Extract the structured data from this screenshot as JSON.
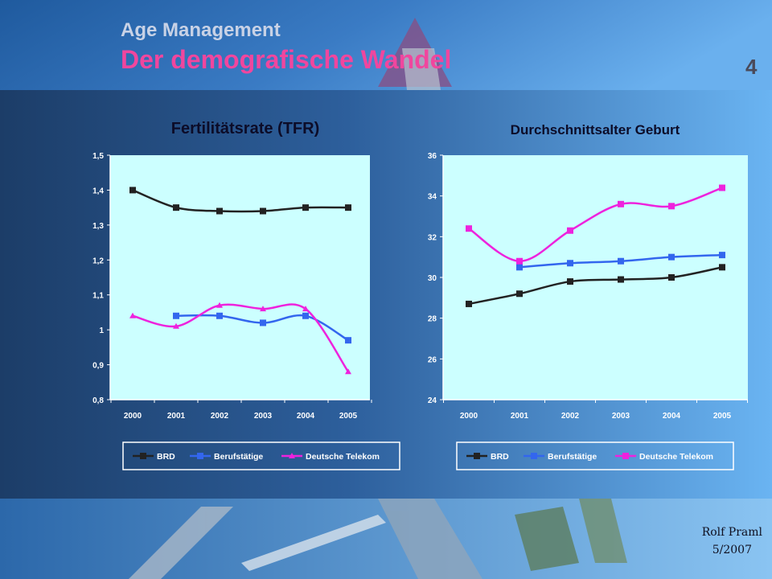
{
  "header": {
    "section": "Age Management",
    "title": "Der demografische Wandel",
    "page_number": "4"
  },
  "footer": {
    "author": "Rolf Praml",
    "date": "5/2007"
  },
  "colors": {
    "BRD": "#222222",
    "Berufstätige": "#3366ee",
    "Deutsche Telekom": "#ee22dd",
    "plot_bg": "#ccffff",
    "title_pink": "#f0469e"
  },
  "chart_data": [
    {
      "type": "line",
      "title": "Fertilitätsrate (TFR)",
      "x": [
        "2000",
        "2001",
        "2002",
        "2003",
        "2004",
        "2005"
      ],
      "ylim": [
        0.8,
        1.5
      ],
      "yticks": [
        "0,8",
        "0,9",
        "1",
        "1,1",
        "1,2",
        "1,3",
        "1,4",
        "1,5"
      ],
      "ytick_values": [
        0.8,
        0.9,
        1.0,
        1.1,
        1.2,
        1.3,
        1.4,
        1.5
      ],
      "grid": false,
      "legend": "bottom",
      "series": [
        {
          "name": "BRD",
          "marker": "square",
          "values": [
            1.4,
            1.35,
            1.34,
            1.34,
            1.35,
            1.35
          ]
        },
        {
          "name": "Berufstätige",
          "marker": "square",
          "values": [
            null,
            1.04,
            1.04,
            1.02,
            1.04,
            0.97
          ]
        },
        {
          "name": "Deutsche Telekom",
          "marker": "triangle",
          "values": [
            1.04,
            1.01,
            1.07,
            1.06,
            1.06,
            0.88
          ]
        }
      ]
    },
    {
      "type": "line",
      "title": "Durchschnittsalter Geburt",
      "x": [
        "2000",
        "2001",
        "2002",
        "2003",
        "2004",
        "2005"
      ],
      "ylim": [
        24,
        36
      ],
      "yticks": [
        "24",
        "26",
        "28",
        "30",
        "32",
        "34",
        "36"
      ],
      "ytick_values": [
        24,
        26,
        28,
        30,
        32,
        34,
        36
      ],
      "grid": false,
      "legend": "bottom",
      "series": [
        {
          "name": "BRD",
          "marker": "square",
          "values": [
            28.7,
            29.2,
            29.8,
            29.9,
            30.0,
            30.5
          ]
        },
        {
          "name": "Berufstätige",
          "marker": "square",
          "values": [
            null,
            30.5,
            30.7,
            30.8,
            31.0,
            31.1
          ]
        },
        {
          "name": "Deutsche Telekom",
          "marker": "square",
          "values": [
            32.4,
            30.8,
            32.3,
            33.6,
            33.5,
            34.4
          ]
        }
      ]
    }
  ]
}
